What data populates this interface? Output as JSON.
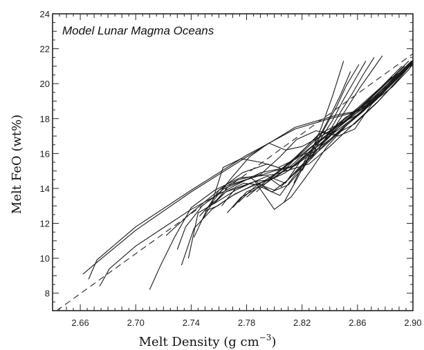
{
  "chart_data": {
    "type": "line",
    "title": "",
    "annotation": "Model Lunar Magma Oceans",
    "xlabel": "Melt Density (g cm",
    "xlabel_sup": "−3",
    "xlabel_close": ")",
    "ylabel": "Melt FeO (wt%)",
    "xlim": [
      2.64,
      2.9
    ],
    "ylim": [
      7,
      24
    ],
    "xticks": [
      "2.66",
      "2.70",
      "2.74",
      "2.78",
      "2.82",
      "2.86",
      "2.90"
    ],
    "yticks": [
      "8",
      "10",
      "12",
      "14",
      "16",
      "18",
      "20",
      "22",
      "24"
    ],
    "grid": false,
    "legend": "none",
    "reference_line": {
      "style": "dashed",
      "x": [
        2.643,
        2.905
      ],
      "y": [
        7.0,
        22.0
      ]
    },
    "series": [
      {
        "x": [
          2.666,
          2.672,
          2.7,
          2.74,
          2.78,
          2.815,
          2.84,
          2.855,
          2.872,
          2.885,
          2.897,
          2.906
        ],
        "y": [
          8.8,
          9.9,
          11.8,
          13.9,
          15.9,
          17.4,
          18.0,
          18.3,
          19.0,
          19.8,
          20.8,
          21.8
        ]
      },
      {
        "x": [
          2.662,
          2.671,
          2.7,
          2.74,
          2.78,
          2.815,
          2.845,
          2.858,
          2.873,
          2.886,
          2.897,
          2.908
        ],
        "y": [
          9.1,
          9.7,
          11.6,
          13.8,
          15.8,
          17.5,
          18.2,
          18.4,
          19.2,
          20.1,
          21.0,
          21.9
        ]
      },
      {
        "x": [
          2.674,
          2.681,
          2.7,
          2.74,
          2.77,
          2.79,
          2.815,
          2.84,
          2.855,
          2.87,
          2.883,
          2.895
        ],
        "y": [
          8.4,
          9.4,
          10.7,
          12.8,
          14.1,
          14.9,
          15.3,
          16.8,
          17.9,
          18.9,
          19.9,
          20.9
        ]
      },
      {
        "x": [
          2.71,
          2.718,
          2.728,
          2.74,
          2.757,
          2.775,
          2.8,
          2.825,
          2.84,
          2.86,
          2.875,
          2.89
        ],
        "y": [
          8.2,
          9.6,
          11.2,
          12.9,
          13.9,
          14.6,
          14.8,
          15.4,
          16.4,
          17.9,
          19.0,
          20.3
        ]
      },
      {
        "x": [
          2.722,
          2.726,
          2.74,
          2.76,
          2.777,
          2.795,
          2.81,
          2.825,
          2.84,
          2.86,
          2.875,
          2.889
        ],
        "y": [
          11.3,
          11.6,
          12.6,
          13.9,
          14.9,
          15.4,
          15.0,
          16.0,
          17.0,
          18.2,
          19.4,
          20.6
        ]
      },
      {
        "x": [
          2.73,
          2.736,
          2.748,
          2.764,
          2.78,
          2.8,
          2.812,
          2.828,
          2.842,
          2.86,
          2.877,
          2.892
        ],
        "y": [
          10.5,
          11.8,
          13.0,
          14.0,
          14.5,
          15.0,
          15.2,
          16.3,
          17.4,
          18.6,
          19.8,
          21.0
        ]
      },
      {
        "x": [
          2.733,
          2.742,
          2.755,
          2.77,
          2.785,
          2.8,
          2.808,
          2.822,
          2.838,
          2.855,
          2.87,
          2.886
        ],
        "y": [
          9.6,
          11.7,
          12.8,
          13.6,
          14.2,
          14.6,
          14.9,
          15.8,
          16.9,
          18.1,
          19.2,
          20.4
        ]
      },
      {
        "x": [
          2.738,
          2.745,
          2.758,
          2.772,
          2.786,
          2.798,
          2.805,
          2.818,
          2.833,
          2.85,
          2.868,
          2.885
        ],
        "y": [
          10.0,
          12.6,
          13.2,
          13.9,
          14.4,
          14.5,
          14.1,
          15.2,
          16.4,
          17.8,
          19.1,
          20.4
        ]
      },
      {
        "x": [
          2.742,
          2.752,
          2.765,
          2.778,
          2.79,
          2.8,
          2.81,
          2.824,
          2.84,
          2.856,
          2.872,
          2.888
        ],
        "y": [
          11.2,
          12.9,
          13.8,
          14.3,
          14.2,
          13.9,
          14.5,
          15.6,
          16.7,
          17.9,
          19.1,
          20.3
        ]
      },
      {
        "x": [
          2.746,
          2.755,
          2.763,
          2.776,
          2.79,
          2.803,
          2.816,
          2.83,
          2.845,
          2.862,
          2.878,
          2.894
        ],
        "y": [
          12.4,
          13.2,
          15.2,
          15.7,
          15.5,
          15.2,
          15.7,
          16.6,
          17.5,
          18.6,
          19.8,
          21.0
        ]
      },
      {
        "x": [
          2.748,
          2.757,
          2.769,
          2.782,
          2.796,
          2.808,
          2.82,
          2.834,
          2.85,
          2.866,
          2.882,
          2.897
        ],
        "y": [
          12.2,
          13.4,
          14.6,
          15.8,
          16.6,
          16.2,
          16.4,
          17.0,
          17.8,
          18.9,
          20.1,
          21.3
        ]
      },
      {
        "x": [
          2.75,
          2.759,
          2.772,
          2.786,
          2.8,
          2.812,
          2.826,
          2.84,
          2.856,
          2.87,
          2.886,
          2.899
        ],
        "y": [
          12.7,
          13.0,
          13.7,
          14.2,
          14.6,
          15.3,
          16.3,
          17.2,
          18.2,
          19.1,
          20.3,
          21.3
        ]
      },
      {
        "x": [
          2.752,
          2.76,
          2.774,
          2.79,
          2.804,
          2.816,
          2.83,
          2.844,
          2.858,
          2.874,
          2.888,
          2.902
        ],
        "y": [
          12.9,
          13.9,
          14.5,
          14.8,
          15.8,
          16.8,
          17.3,
          17.1,
          17.7,
          18.9,
          20.1,
          21.4
        ]
      },
      {
        "x": [
          2.756,
          2.765,
          2.78,
          2.795,
          2.808,
          2.82,
          2.833,
          2.848,
          2.862,
          2.876,
          2.89,
          2.903
        ],
        "y": [
          13.1,
          13.8,
          14.2,
          14.7,
          14.3,
          15.7,
          16.7,
          17.6,
          18.5,
          19.4,
          20.5,
          21.6
        ]
      },
      {
        "x": [
          2.758,
          2.768,
          2.783,
          2.798,
          2.81,
          2.823,
          2.836,
          2.849,
          2.864,
          2.878,
          2.892,
          2.905
        ],
        "y": [
          13.3,
          14.2,
          14.6,
          13.8,
          14.2,
          15.4,
          16.5,
          17.4,
          18.4,
          19.5,
          20.6,
          21.7
        ]
      },
      {
        "x": [
          2.762,
          2.772,
          2.786,
          2.8,
          2.812,
          2.826,
          2.838,
          2.852,
          2.866,
          2.88,
          2.894,
          2.906
        ],
        "y": [
          13.0,
          14.0,
          14.4,
          12.8,
          13.5,
          15.0,
          16.4,
          17.6,
          18.6,
          19.6,
          20.7,
          21.8
        ]
      },
      {
        "x": [
          2.766,
          2.776,
          2.79,
          2.804,
          2.816,
          2.83,
          2.842,
          2.856,
          2.868,
          2.882,
          2.896,
          2.908
        ],
        "y": [
          12.6,
          13.5,
          14.1,
          13.6,
          14.9,
          16.1,
          17.4,
          18.3,
          19.0,
          19.9,
          20.9,
          21.9
        ]
      },
      {
        "x": [
          2.77,
          2.78,
          2.794,
          2.808,
          2.822,
          2.834,
          2.846,
          2.858,
          2.87,
          2.884,
          2.898,
          2.91
        ],
        "y": [
          12.9,
          13.8,
          14.3,
          15.1,
          16.3,
          17.2,
          17.0,
          17.4,
          18.8,
          19.9,
          21.0,
          22.0
        ]
      },
      {
        "x": [
          2.774,
          2.786,
          2.8,
          2.814,
          2.826,
          2.838,
          2.85,
          2.862,
          2.874,
          2.886,
          2.899,
          2.911
        ],
        "y": [
          13.2,
          14.1,
          14.8,
          15.7,
          16.1,
          16.8,
          17.8,
          18.3,
          19.1,
          20.1,
          21.1,
          22.1
        ]
      },
      {
        "x": [
          2.78,
          2.792,
          2.806,
          2.818,
          2.83,
          2.84,
          2.852,
          2.864,
          2.876,
          2.888,
          2.9,
          2.912
        ],
        "y": [
          13.5,
          14.3,
          15.1,
          15.9,
          16.8,
          17.3,
          18.1,
          18.6,
          19.4,
          20.4,
          21.3,
          22.2
        ]
      },
      {
        "x": [
          2.787,
          2.798,
          2.81,
          2.822,
          2.832,
          2.842,
          2.854,
          2.866,
          2.877,
          2.889,
          2.901,
          2.913
        ],
        "y": [
          13.8,
          14.6,
          15.4,
          16.3,
          17.1,
          17.5,
          18.0,
          18.7,
          19.6,
          20.5,
          21.4,
          22.3
        ]
      },
      {
        "x": [
          2.807,
          2.816,
          2.826,
          2.834,
          2.842,
          2.85
        ],
        "y": [
          13.2,
          14.5,
          16.0,
          17.5,
          19.3,
          21.3
        ]
      },
      {
        "x": [
          2.814,
          2.822,
          2.832,
          2.84,
          2.848,
          2.855
        ],
        "y": [
          14.3,
          15.6,
          16.9,
          18.1,
          19.4,
          20.7
        ]
      },
      {
        "x": [
          2.82,
          2.828,
          2.836,
          2.845,
          2.852,
          2.861
        ],
        "y": [
          15.0,
          16.2,
          17.4,
          18.7,
          19.9,
          21.1
        ]
      },
      {
        "x": [
          2.826,
          2.834,
          2.842,
          2.85,
          2.858,
          2.866
        ],
        "y": [
          15.7,
          16.9,
          17.9,
          19.1,
          20.2,
          21.3
        ]
      },
      {
        "x": [
          2.832,
          2.84,
          2.848,
          2.856,
          2.864,
          2.872
        ],
        "y": [
          16.2,
          17.3,
          18.4,
          19.4,
          20.5,
          21.5
        ]
      },
      {
        "x": [
          2.838,
          2.846,
          2.854,
          2.862,
          2.87,
          2.878
        ],
        "y": [
          16.8,
          17.8,
          18.8,
          19.8,
          20.7,
          21.6
        ]
      }
    ]
  }
}
